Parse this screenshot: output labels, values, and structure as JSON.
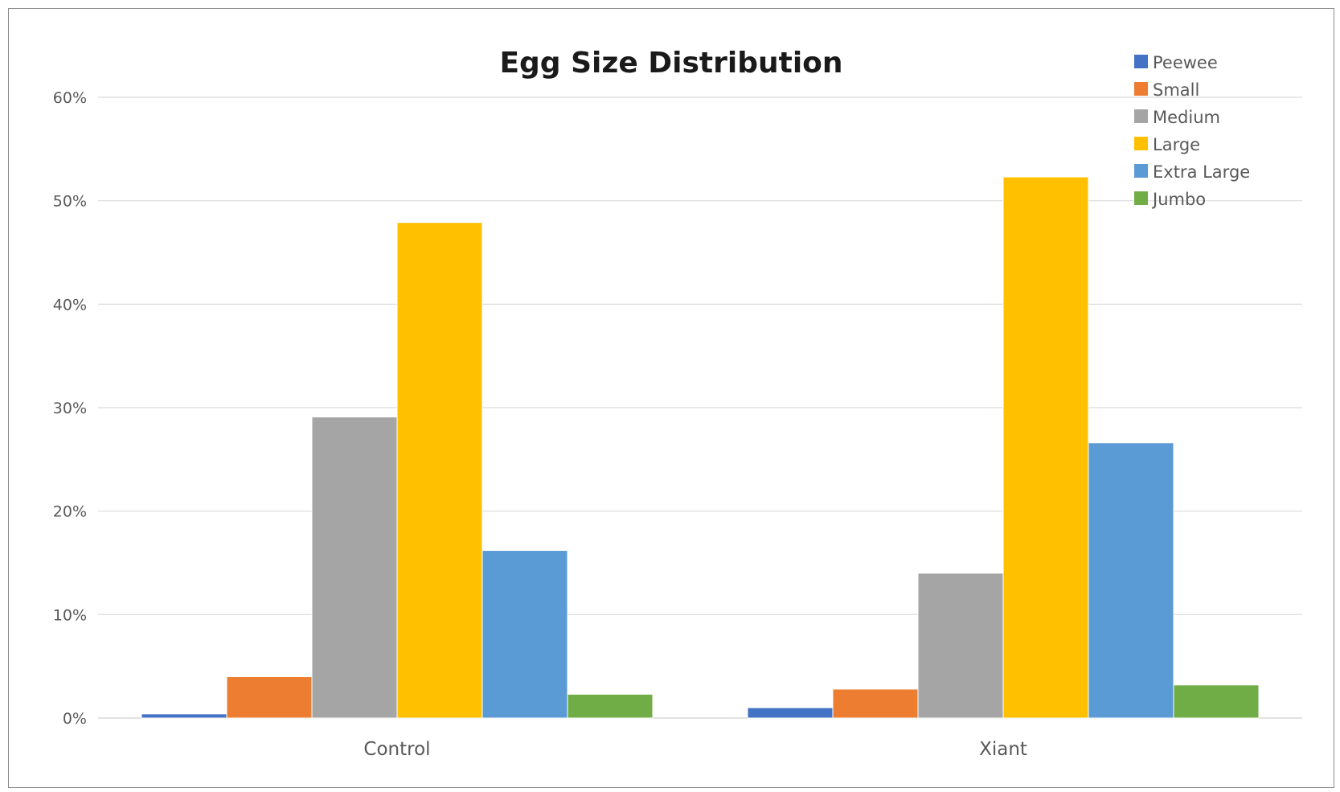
{
  "chart_data": {
    "type": "bar",
    "title": "Egg Size Distribution",
    "xlabel": "",
    "ylabel": "",
    "categories": [
      "Control",
      "Xiant"
    ],
    "yticks": [
      "0%",
      "10%",
      "20%",
      "30%",
      "40%",
      "50%",
      "60%"
    ],
    "ylim": [
      0,
      60
    ],
    "y_unit": "%",
    "grid": true,
    "legend_position": "top-right",
    "series": [
      {
        "name": "Peewee",
        "color": "#4472c4",
        "values": [
          0.4,
          1.0
        ]
      },
      {
        "name": "Small",
        "color": "#ed7d31",
        "values": [
          4.0,
          2.8
        ]
      },
      {
        "name": "Medium",
        "color": "#a5a5a5",
        "values": [
          29.1,
          14.0
        ]
      },
      {
        "name": "Large",
        "color": "#ffc000",
        "values": [
          47.9,
          52.3
        ]
      },
      {
        "name": "Extra Large",
        "color": "#5b9bd5",
        "values": [
          16.2,
          26.6
        ]
      },
      {
        "name": "Jumbo",
        "color": "#70ad47",
        "values": [
          2.3,
          3.2
        ]
      }
    ]
  }
}
